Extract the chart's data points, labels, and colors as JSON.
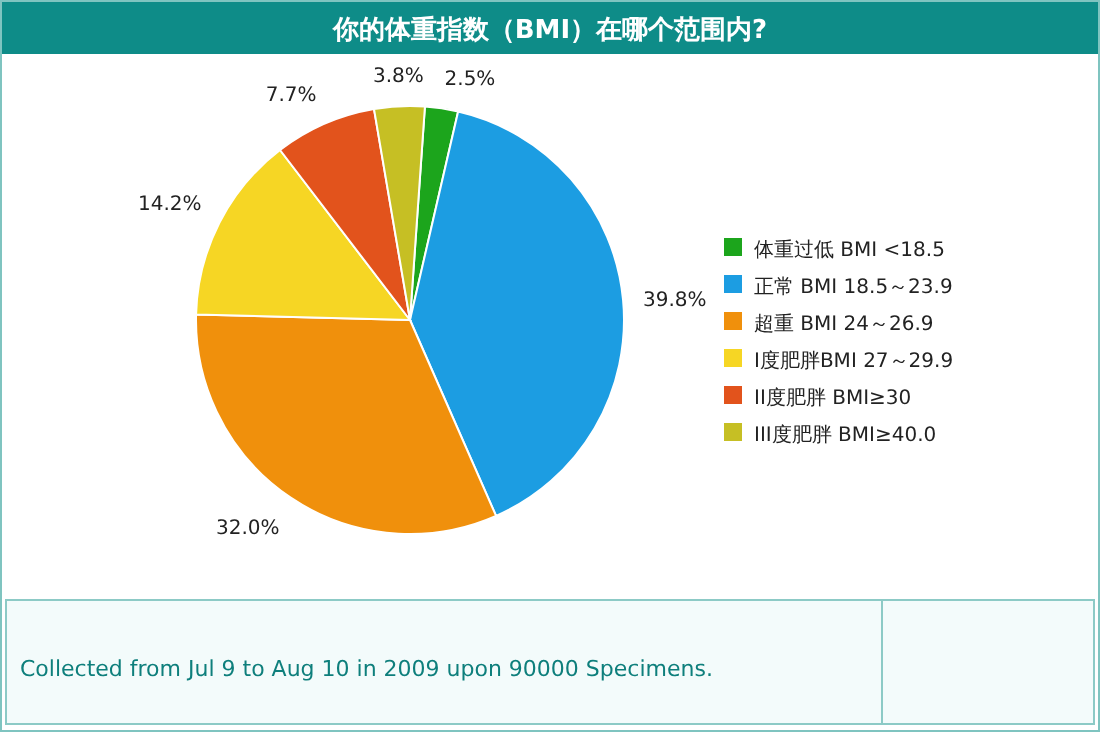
{
  "chart_data": {
    "type": "pie",
    "title": "你的体重指数（BMI）在哪个范围内?",
    "categories": [
      "体重过低 BMI <18.5",
      "正常 BMI 18.5～23.9",
      "超重 BMI 24～26.9",
      "I度肥胖BMI 27～29.9",
      "II度肥胖 BMI≥30",
      "III度肥胖 BMI≥40.0"
    ],
    "values": [
      2.5,
      39.8,
      32.0,
      14.2,
      7.7,
      3.8
    ],
    "colors": [
      "#1ca51c",
      "#1c9de2",
      "#f0900c",
      "#f6d624",
      "#e2531c",
      "#c6bf24"
    ],
    "value_labels": [
      "2.5%",
      "39.8%",
      "32.0%",
      "14.2%",
      "7.7%",
      "3.8%"
    ],
    "legend": "right",
    "annotations": [
      "Collected from Jul 9 to Aug 10 in 2009 upon 90000 Specimens."
    ]
  }
}
